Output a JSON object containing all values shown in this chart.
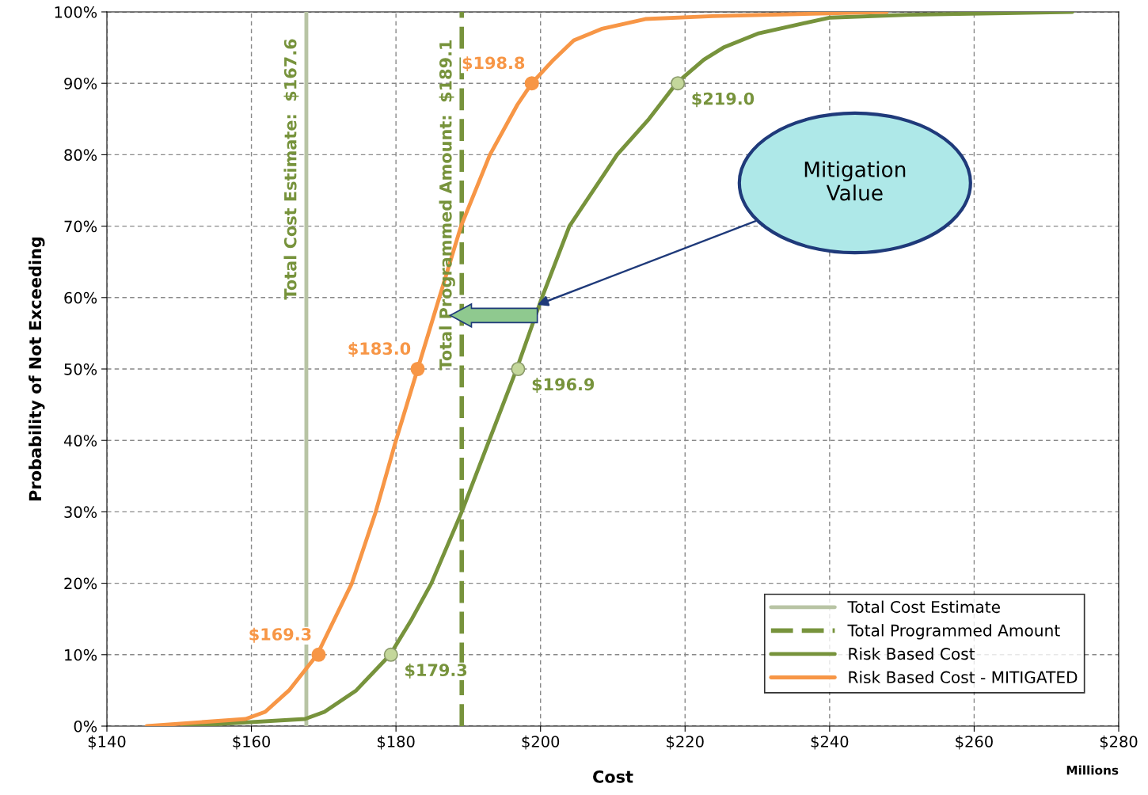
{
  "chart_data": {
    "type": "line",
    "xlabel": "Cost",
    "ylabel": "Probability of Not Exceeding",
    "xlim": [
      140,
      280
    ],
    "xticks": [
      {
        "value": 140,
        "label": "$140"
      },
      {
        "value": 160,
        "label": "$160"
      },
      {
        "value": 180,
        "label": "$180"
      },
      {
        "value": 200,
        "label": "$200"
      },
      {
        "value": 220,
        "label": "$220"
      },
      {
        "value": 240,
        "label": "$240"
      },
      {
        "value": 260,
        "label": "$260"
      },
      {
        "value": 280,
        "label": "$280"
      }
    ],
    "ylim": [
      0,
      100
    ],
    "yticks": [
      {
        "value": 0,
        "label": "0%"
      },
      {
        "value": 10,
        "label": "10%"
      },
      {
        "value": 20,
        "label": "20%"
      },
      {
        "value": 30,
        "label": "30%"
      },
      {
        "value": 40,
        "label": "40%"
      },
      {
        "value": 50,
        "label": "50%"
      },
      {
        "value": 60,
        "label": "60%"
      },
      {
        "value": 70,
        "label": "70%"
      },
      {
        "value": 80,
        "label": "80%"
      },
      {
        "value": 90,
        "label": "90%"
      },
      {
        "value": 100,
        "label": "100%"
      }
    ],
    "grid": true,
    "legend": "bottom right",
    "marker": "none",
    "series": [
      {
        "name": "Total Cost Estimate",
        "color": "#b8c4a4",
        "line_style": "solid",
        "x": [
          167.6,
          167.6
        ],
        "values": [
          0,
          100
        ]
      },
      {
        "name": "Total Programmed Amount",
        "color": "#77933c",
        "line_style": "dashed",
        "x": [
          189.1,
          189.1
        ],
        "values": [
          0,
          100
        ]
      },
      {
        "name": "Risk Based Cost",
        "color": "#77933c",
        "line_style": "solid",
        "x": [
          150.4,
          167.4,
          170.1,
          174.5,
          179.2,
          182.2,
          184.9,
          189.1,
          192.9,
          196.7,
          200.2,
          204.0,
          210.6,
          215.0,
          218.8,
          222.6,
          225.3,
          230.2,
          234.6,
          240.1,
          251.1,
          273.6
        ],
        "values": [
          0,
          1,
          2,
          5,
          10,
          15,
          20,
          30,
          40,
          50,
          60,
          70,
          80,
          85,
          90,
          93.3,
          95,
          97,
          98,
          99.2,
          99.6,
          100
        ]
      },
      {
        "name": "Risk Based Cost - MITIGATED",
        "color": "#f79646",
        "line_style": "solid",
        "x": [
          145.5,
          159.2,
          161.9,
          165.2,
          169.1,
          173.9,
          177.2,
          180.0,
          183.0,
          186.0,
          189.0,
          193.0,
          196.8,
          198.8,
          201.8,
          204.6,
          208.4,
          214.5,
          223.8,
          247.9
        ],
        "values": [
          0,
          1,
          2,
          5,
          10,
          20,
          30,
          40,
          50,
          60,
          70,
          80,
          87,
          90,
          93.3,
          96,
          97.6,
          99,
          99.4,
          100
        ]
      },
      {
        "type": "scatter",
        "marker": "circle",
        "color": "#f79646",
        "x": [
          169.3,
          183.0,
          198.8
        ],
        "values": [
          10,
          50,
          90
        ]
      },
      {
        "type": "scatter",
        "marker": "circle",
        "color": "#c4d79b",
        "x": [
          179.3,
          196.9,
          219.0
        ],
        "values": [
          10,
          50,
          90
        ]
      }
    ],
    "annotations": [
      {
        "text": "$169.3",
        "x": 169.3,
        "y": 10
      },
      {
        "text": "$183.0",
        "x": 183.0,
        "y": 50
      },
      {
        "text": "$198.8",
        "x": 198.8,
        "y": 90
      },
      {
        "text": "$179.3",
        "x": 179.3,
        "y": 10
      },
      {
        "text": "$196.9",
        "x": 196.9,
        "y": 50
      },
      {
        "text": "$219.0",
        "x": 219.0,
        "y": 90
      },
      {
        "text": "Total Cost Estimate:  $167.6",
        "x": 167.6,
        "y": 78
      },
      {
        "text": "Total Programmed Amount:  $189.1",
        "x": 189.1,
        "y": 73
      },
      "Mitigation\nValue",
      "Millions"
    ]
  }
}
